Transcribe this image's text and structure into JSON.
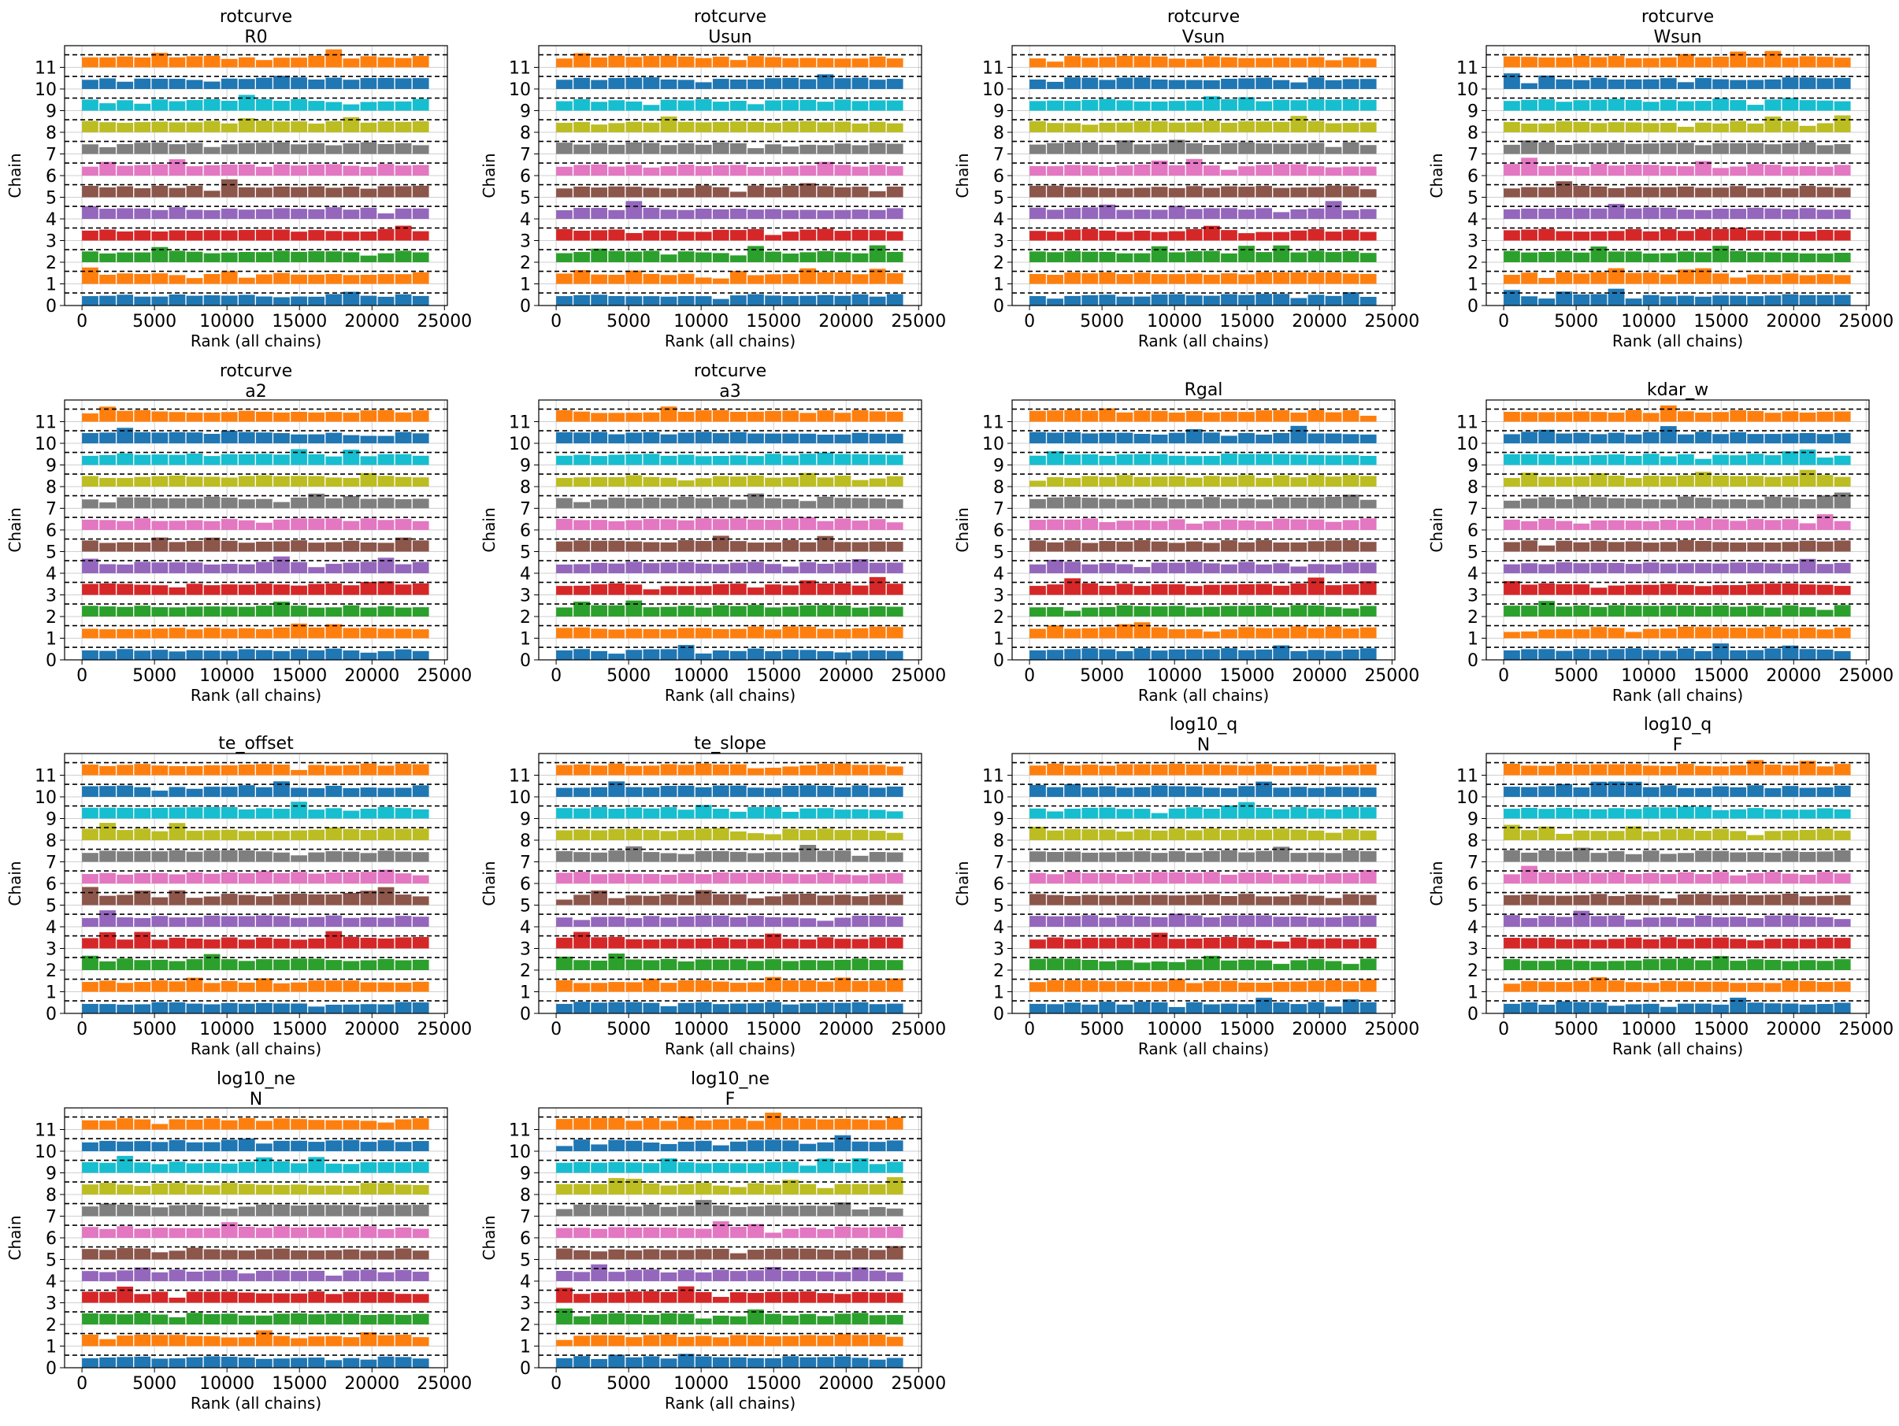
{
  "figure_type": "rank plot grid",
  "colors": [
    "#1f77b4",
    "#ff7f0e",
    "#2ca02c",
    "#d62728",
    "#9467bd",
    "#8c564b",
    "#e377c2",
    "#7f7f7f",
    "#bcbd22",
    "#17becf",
    "#1f77b4",
    "#ff7f0e"
  ],
  "chart_data": [
    {
      "type": "bar",
      "title": "rotcurve",
      "subtitle": "R0",
      "xlabel": "Rank (all chains)",
      "ylabel": "Chain",
      "xlim": [
        -1200,
        25200
      ],
      "ylim": [
        0,
        12
      ],
      "xticks": [
        "0",
        "5000",
        "10000",
        "15000",
        "20000",
        "25000"
      ],
      "yticks": [
        "0",
        "1",
        "2",
        "3",
        "4",
        "5",
        "6",
        "7",
        "8",
        "9",
        "10",
        "11"
      ],
      "n_chains": 12,
      "n_bins": 20,
      "bin_width": 1200,
      "grid": true,
      "seed": 11
    },
    {
      "type": "bar",
      "title": "rotcurve",
      "subtitle": "Usun",
      "xlabel": "Rank (all chains)",
      "ylabel": "Chain",
      "xlim": [
        -1200,
        25200
      ],
      "ylim": [
        0,
        12
      ],
      "xticks": [
        "0",
        "5000",
        "10000",
        "15000",
        "20000",
        "25000"
      ],
      "yticks": [
        "0",
        "1",
        "2",
        "3",
        "4",
        "5",
        "6",
        "7",
        "8",
        "9",
        "10",
        "11"
      ],
      "n_chains": 12,
      "n_bins": 20,
      "bin_width": 1200,
      "grid": true,
      "seed": 23
    },
    {
      "type": "bar",
      "title": "rotcurve",
      "subtitle": "Vsun",
      "xlabel": "Rank (all chains)",
      "ylabel": "Chain",
      "xlim": [
        -1200,
        25200
      ],
      "ylim": [
        0,
        12
      ],
      "xticks": [
        "0",
        "5000",
        "10000",
        "15000",
        "20000",
        "25000"
      ],
      "yticks": [
        "0",
        "1",
        "2",
        "3",
        "4",
        "5",
        "6",
        "7",
        "8",
        "9",
        "10",
        "11"
      ],
      "n_chains": 12,
      "n_bins": 20,
      "bin_width": 1200,
      "grid": true,
      "seed": 37
    },
    {
      "type": "bar",
      "title": "rotcurve",
      "subtitle": "Wsun",
      "xlabel": "Rank (all chains)",
      "ylabel": "Chain",
      "xlim": [
        -1200,
        25200
      ],
      "ylim": [
        0,
        12
      ],
      "xticks": [
        "0",
        "5000",
        "10000",
        "15000",
        "20000",
        "25000"
      ],
      "yticks": [
        "0",
        "1",
        "2",
        "3",
        "4",
        "5",
        "6",
        "7",
        "8",
        "9",
        "10",
        "11"
      ],
      "n_chains": 12,
      "n_bins": 20,
      "bin_width": 1200,
      "grid": true,
      "seed": 41
    },
    {
      "type": "bar",
      "title": "rotcurve",
      "subtitle": "a2",
      "xlabel": "Rank (all chains)",
      "ylabel": "Chain",
      "xlim": [
        -1200,
        25200
      ],
      "ylim": [
        0,
        12
      ],
      "xticks": [
        "0",
        "5000",
        "10000",
        "15000",
        "20000",
        "25000"
      ],
      "yticks": [
        "0",
        "1",
        "2",
        "3",
        "4",
        "5",
        "6",
        "7",
        "8",
        "9",
        "10",
        "11"
      ],
      "n_chains": 12,
      "n_bins": 20,
      "bin_width": 1200,
      "grid": true,
      "seed": 53
    },
    {
      "type": "bar",
      "title": "rotcurve",
      "subtitle": "a3",
      "xlabel": "Rank (all chains)",
      "ylabel": "Chain",
      "xlim": [
        -1200,
        25200
      ],
      "ylim": [
        0,
        12
      ],
      "xticks": [
        "0",
        "5000",
        "10000",
        "15000",
        "20000",
        "25000"
      ],
      "yticks": [
        "0",
        "1",
        "2",
        "3",
        "4",
        "5",
        "6",
        "7",
        "8",
        "9",
        "10",
        "11"
      ],
      "n_chains": 12,
      "n_bins": 20,
      "bin_width": 1200,
      "grid": true,
      "seed": 67
    },
    {
      "type": "bar",
      "title": "Rgal",
      "subtitle": "",
      "xlabel": "Rank (all chains)",
      "ylabel": "Chain",
      "xlim": [
        -1200,
        25200
      ],
      "ylim": [
        0,
        12
      ],
      "xticks": [
        "0",
        "5000",
        "10000",
        "15000",
        "20000",
        "25000"
      ],
      "yticks": [
        "0",
        "1",
        "2",
        "3",
        "4",
        "5",
        "6",
        "7",
        "8",
        "9",
        "10",
        "11"
      ],
      "n_chains": 12,
      "n_bins": 20,
      "bin_width": 1200,
      "grid": true,
      "seed": 71
    },
    {
      "type": "bar",
      "title": "kdar_w",
      "subtitle": "",
      "xlabel": "Rank (all chains)",
      "ylabel": "Chain",
      "xlim": [
        -1200,
        25200
      ],
      "ylim": [
        0,
        12
      ],
      "xticks": [
        "0",
        "5000",
        "10000",
        "15000",
        "20000",
        "25000"
      ],
      "yticks": [
        "0",
        "1",
        "2",
        "3",
        "4",
        "5",
        "6",
        "7",
        "8",
        "9",
        "10",
        "11"
      ],
      "n_chains": 12,
      "n_bins": 20,
      "bin_width": 1200,
      "grid": true,
      "seed": 83
    },
    {
      "type": "bar",
      "title": "te_offset",
      "subtitle": "",
      "xlabel": "Rank (all chains)",
      "ylabel": "Chain",
      "xlim": [
        -1200,
        25200
      ],
      "ylim": [
        0,
        12
      ],
      "xticks": [
        "0",
        "5000",
        "10000",
        "15000",
        "20000",
        "25000"
      ],
      "yticks": [
        "0",
        "1",
        "2",
        "3",
        "4",
        "5",
        "6",
        "7",
        "8",
        "9",
        "10",
        "11"
      ],
      "n_chains": 12,
      "n_bins": 20,
      "bin_width": 1200,
      "grid": true,
      "seed": 97
    },
    {
      "type": "bar",
      "title": "te_slope",
      "subtitle": "",
      "xlabel": "Rank (all chains)",
      "ylabel": "Chain",
      "xlim": [
        -1200,
        25200
      ],
      "ylim": [
        0,
        12
      ],
      "xticks": [
        "0",
        "5000",
        "10000",
        "15000",
        "20000",
        "25000"
      ],
      "yticks": [
        "0",
        "1",
        "2",
        "3",
        "4",
        "5",
        "6",
        "7",
        "8",
        "9",
        "10",
        "11"
      ],
      "n_chains": 12,
      "n_bins": 20,
      "bin_width": 1200,
      "grid": true,
      "seed": 101
    },
    {
      "type": "bar",
      "title": "log10_q",
      "subtitle": "N",
      "xlabel": "Rank (all chains)",
      "ylabel": "Chain",
      "xlim": [
        -1200,
        25200
      ],
      "ylim": [
        0,
        12
      ],
      "xticks": [
        "0",
        "5000",
        "10000",
        "15000",
        "20000",
        "25000"
      ],
      "yticks": [
        "0",
        "1",
        "2",
        "3",
        "4",
        "5",
        "6",
        "7",
        "8",
        "9",
        "10",
        "11"
      ],
      "n_chains": 12,
      "n_bins": 20,
      "bin_width": 1200,
      "grid": true,
      "seed": 113
    },
    {
      "type": "bar",
      "title": "log10_q",
      "subtitle": "F",
      "xlabel": "Rank (all chains)",
      "ylabel": "Chain",
      "xlim": [
        -1200,
        25200
      ],
      "ylim": [
        0,
        12
      ],
      "xticks": [
        "0",
        "5000",
        "10000",
        "15000",
        "20000",
        "25000"
      ],
      "yticks": [
        "0",
        "1",
        "2",
        "3",
        "4",
        "5",
        "6",
        "7",
        "8",
        "9",
        "10",
        "11"
      ],
      "n_chains": 12,
      "n_bins": 20,
      "bin_width": 1200,
      "grid": true,
      "seed": 127
    },
    {
      "type": "bar",
      "title": "log10_ne",
      "subtitle": "N",
      "xlabel": "Rank (all chains)",
      "ylabel": "Chain",
      "xlim": [
        -1200,
        25200
      ],
      "ylim": [
        0,
        12
      ],
      "xticks": [
        "0",
        "5000",
        "10000",
        "15000",
        "20000",
        "25000"
      ],
      "yticks": [
        "0",
        "1",
        "2",
        "3",
        "4",
        "5",
        "6",
        "7",
        "8",
        "9",
        "10",
        "11"
      ],
      "n_chains": 12,
      "n_bins": 20,
      "bin_width": 1200,
      "grid": true,
      "seed": 131
    },
    {
      "type": "bar",
      "title": "log10_ne",
      "subtitle": "F",
      "xlabel": "Rank (all chains)",
      "ylabel": "Chain",
      "xlim": [
        -1200,
        25200
      ],
      "ylim": [
        0,
        12
      ],
      "xticks": [
        "0",
        "5000",
        "10000",
        "15000",
        "20000",
        "25000"
      ],
      "yticks": [
        "0",
        "1",
        "2",
        "3",
        "4",
        "5",
        "6",
        "7",
        "8",
        "9",
        "10",
        "11"
      ],
      "n_chains": 12,
      "n_bins": 20,
      "bin_width": 1200,
      "grid": true,
      "seed": 139
    }
  ]
}
